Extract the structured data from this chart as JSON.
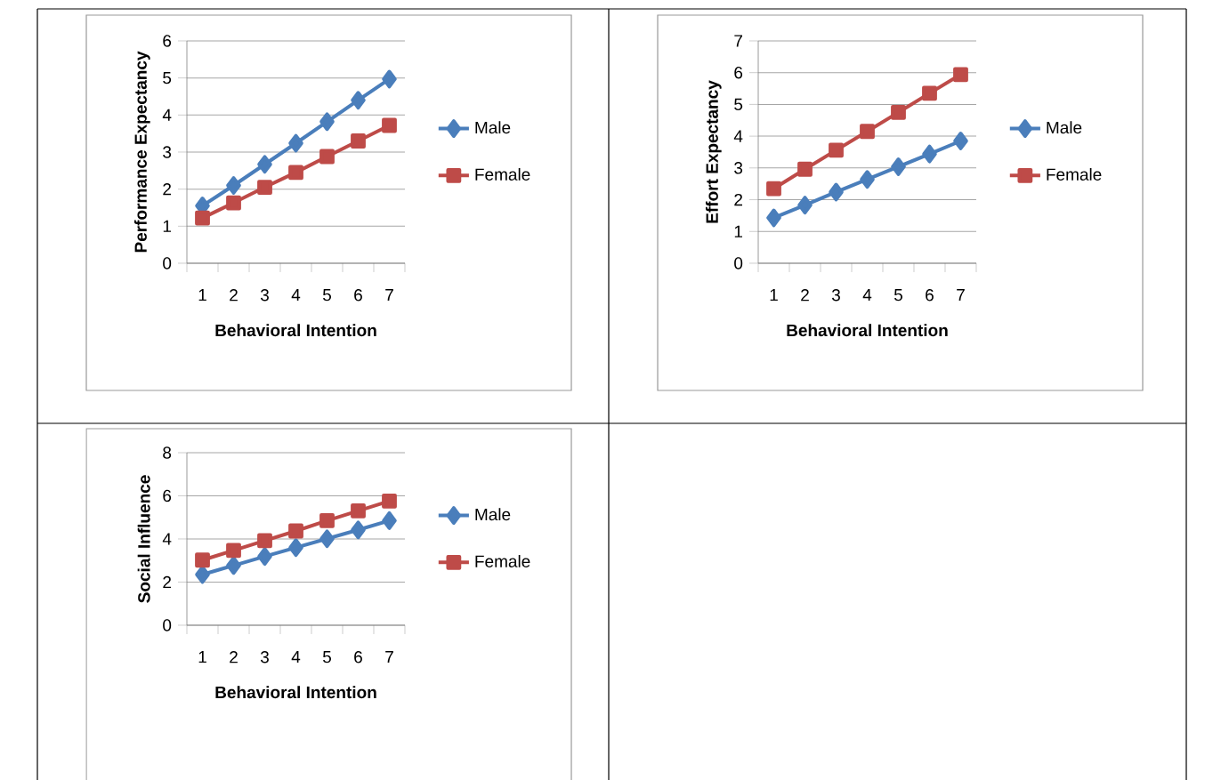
{
  "chart_data": [
    {
      "type": "line",
      "xlabel": "Behavioral Intention",
      "ylabel": "Performance Expectancy",
      "categories": [
        "1",
        "2",
        "3",
        "4",
        "5",
        "6",
        "7"
      ],
      "ylim": [
        0,
        6
      ],
      "yticks": [
        0,
        1,
        2,
        3,
        4,
        5,
        6
      ],
      "grid": "y",
      "legend": "right",
      "line_style": "solid",
      "series": [
        {
          "name": "Male",
          "color": "#4a7ebb",
          "marker": "diamond",
          "values": [
            1.55,
            2.1,
            2.67,
            3.24,
            3.82,
            4.4,
            4.97
          ]
        },
        {
          "name": "Female",
          "color": "#be4b48",
          "marker": "square",
          "values": [
            1.22,
            1.63,
            2.05,
            2.45,
            2.88,
            3.3,
            3.72
          ]
        }
      ]
    },
    {
      "type": "line",
      "xlabel": "Behavioral Intention",
      "ylabel": "Effort Expectancy",
      "categories": [
        "1",
        "2",
        "3",
        "4",
        "5",
        "6",
        "7"
      ],
      "ylim": [
        0,
        7
      ],
      "yticks": [
        0,
        1,
        2,
        3,
        4,
        5,
        6,
        7
      ],
      "grid": "y",
      "legend": "right",
      "line_style": "solid",
      "series": [
        {
          "name": "Male",
          "color": "#4a7ebb",
          "marker": "diamond",
          "values": [
            1.43,
            1.83,
            2.24,
            2.64,
            3.04,
            3.44,
            3.85
          ]
        },
        {
          "name": "Female",
          "color": "#be4b48",
          "marker": "square",
          "values": [
            2.35,
            2.96,
            3.56,
            4.15,
            4.75,
            5.35,
            5.94
          ]
        }
      ]
    },
    {
      "type": "line",
      "xlabel": "Behavioral Intention",
      "ylabel": "Social Influence",
      "categories": [
        "1",
        "2",
        "3",
        "4",
        "5",
        "6",
        "7"
      ],
      "ylim": [
        0,
        8
      ],
      "yticks": [
        0,
        2,
        4,
        6,
        8
      ],
      "grid": "y",
      "legend": "right",
      "line_style": "solid",
      "series": [
        {
          "name": "Male",
          "color": "#4a7ebb",
          "marker": "diamond",
          "values": [
            2.35,
            2.77,
            3.19,
            3.6,
            4.01,
            4.42,
            4.85
          ]
        },
        {
          "name": "Female",
          "color": "#be4b48",
          "marker": "square",
          "values": [
            3.02,
            3.47,
            3.92,
            4.37,
            4.85,
            5.3,
            5.76
          ]
        }
      ]
    }
  ]
}
